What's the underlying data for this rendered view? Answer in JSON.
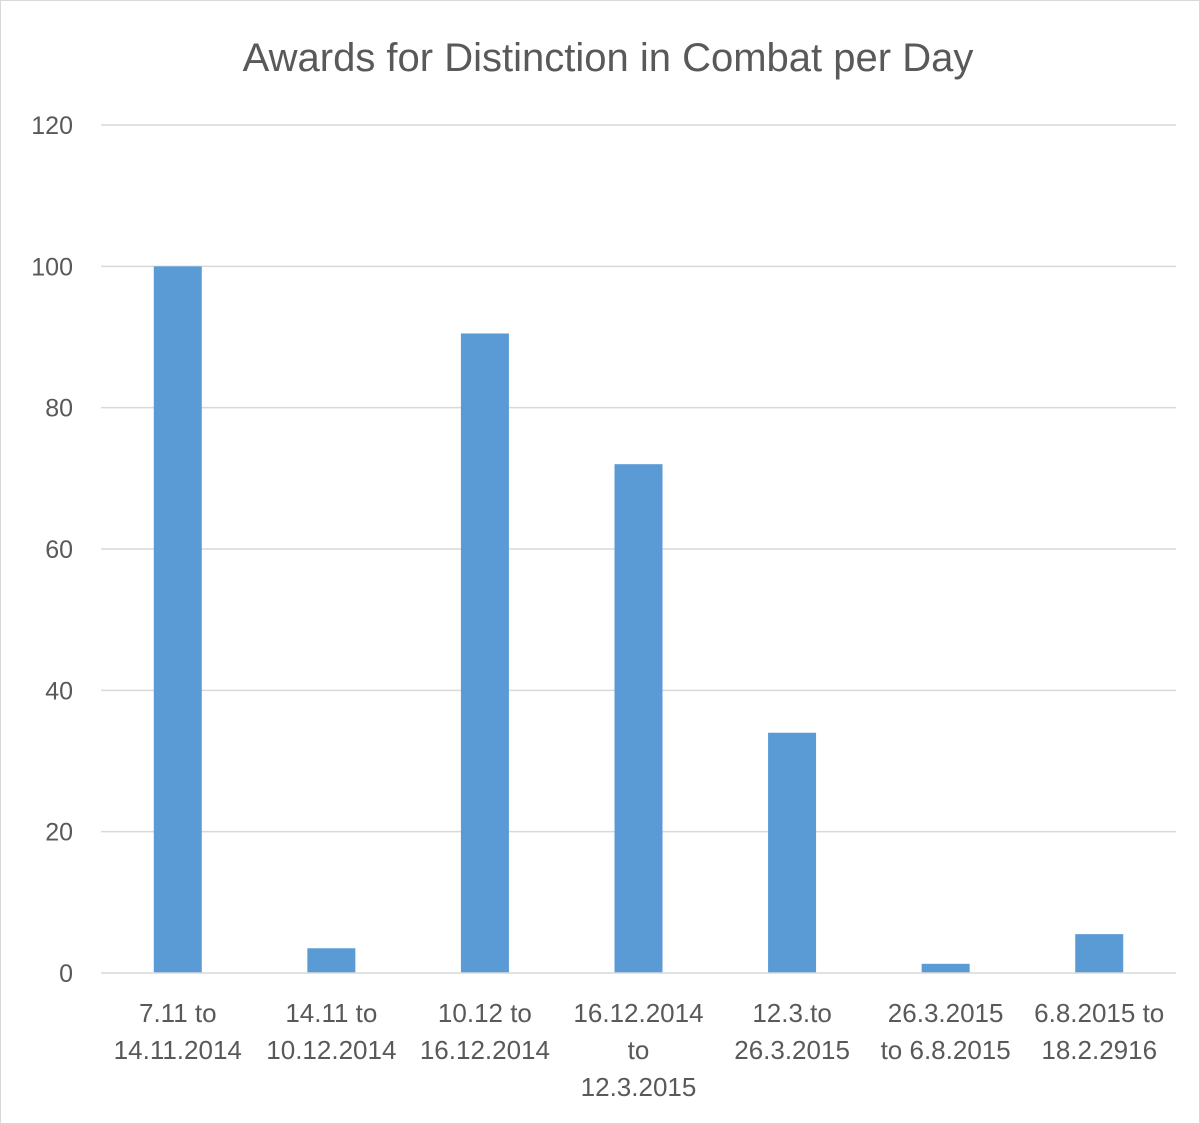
{
  "chart_data": {
    "type": "bar",
    "title": "Awards for Distinction in Combat per Day",
    "xlabel": "",
    "ylabel": "",
    "categories": [
      [
        "7.11 to",
        "14.11.2014"
      ],
      [
        "14.11 to",
        "10.12.2014"
      ],
      [
        "10.12 to",
        "16.12.2014"
      ],
      [
        "16.12.2014",
        "to",
        "12.3.2015"
      ],
      [
        "12.3.to",
        "26.3.2015"
      ],
      [
        "26.3.2015",
        "to 6.8.2015"
      ],
      [
        "6.8.2015 to",
        "18.2.2916"
      ]
    ],
    "values": [
      100,
      3.5,
      90.5,
      72,
      34,
      1.3,
      5.5
    ],
    "ylim": [
      0,
      120
    ],
    "yticks": [
      "0",
      "20",
      "40",
      "60",
      "80",
      "100",
      "120"
    ],
    "ytick_values": [
      0,
      20,
      40,
      60,
      80,
      100,
      120
    ],
    "grid": true,
    "legend": "none",
    "bar_color": "#5b9bd5"
  }
}
